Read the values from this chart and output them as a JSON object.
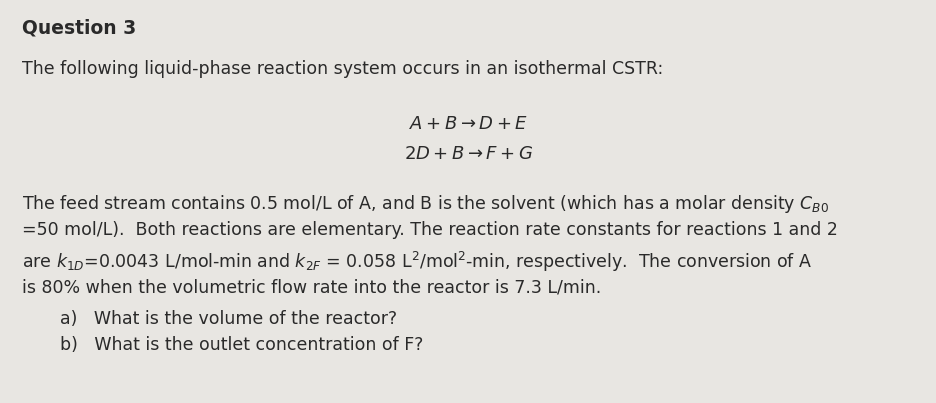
{
  "background_color": "#e8e6e2",
  "title": "Question 3",
  "title_fontsize": 13.5,
  "body_fontsize": 12.5,
  "reaction_fontsize": 13,
  "intro_text": "The following liquid-phase reaction system occurs in an isothermal CSTR:",
  "reaction1": "$A+B\\rightarrow D+E$",
  "reaction2": "$2D+B\\rightarrow F+G$",
  "body_line1": "The feed stream contains 0.5 mol/L of A, and B is the solvent (which has a molar density $C_{B0}$",
  "body_line2": "=50 mol/L).  Both reactions are elementary. The reaction rate constants for reactions 1 and 2",
  "body_line3": "are $k_{1D}$=0.0043 L/mol-min and $k_{2F}$ = 0.058 L$^2$/mol$^2$-min, respectively.  The conversion of A",
  "body_line4": "is 80% when the volumetric flow rate into the reactor is 7.3 L/min.",
  "question_a": "a)   What is the volume of the reactor?",
  "question_b": "b)   What is the outlet concentration of F?",
  "text_color": "#2a2a2a",
  "fig_width": 9.37,
  "fig_height": 4.03,
  "dpi": 100
}
